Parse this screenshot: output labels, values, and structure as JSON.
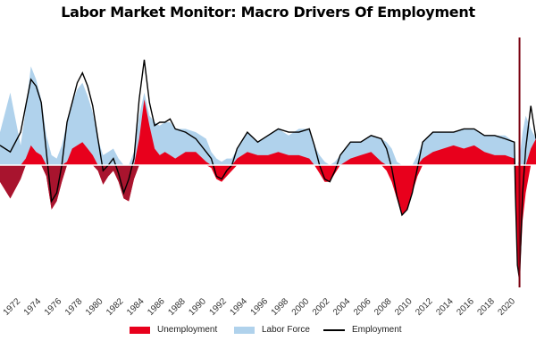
{
  "chart_data": {
    "type": "area",
    "title": "Labor Market Monitor: Macro Drivers Of Employment",
    "xlabel": "",
    "ylabel": "",
    "xlim": [
      1970,
      2022
    ],
    "ylim": [
      -4.4,
      4.2
    ],
    "tick_labels": [
      "1972",
      "1974",
      "1976",
      "1978",
      "1980",
      "1982",
      "1984",
      "1986",
      "1988",
      "1990",
      "1992",
      "1994",
      "1996",
      "1998",
      "2000",
      "2002",
      "2004",
      "2006",
      "2008",
      "2010",
      "2012",
      "2014",
      "2016",
      "2018",
      "2020"
    ],
    "ticks": [
      1972,
      1974,
      1976,
      1978,
      1980,
      1982,
      1984,
      1986,
      1988,
      1990,
      1992,
      1994,
      1996,
      1998,
      2000,
      2002,
      2004,
      2006,
      2008,
      2010,
      2012,
      2014,
      2016,
      2018,
      2020
    ],
    "x": [
      1970,
      1971,
      1972,
      1972.5,
      1973,
      1973.5,
      1974,
      1974.5,
      1975,
      1975.5,
      1976,
      1976.5,
      1977,
      1977.5,
      1978,
      1978.5,
      1979,
      1979.5,
      1980,
      1980.5,
      1981,
      1981.5,
      1982,
      1982.5,
      1983,
      1983.5,
      1984,
      1984.5,
      1985,
      1985.5,
      1986,
      1986.5,
      1987,
      1988,
      1989,
      1990,
      1990.5,
      1991,
      1991.5,
      1992,
      1992.5,
      1993,
      1994,
      1995,
      1996,
      1997,
      1998,
      1999,
      2000,
      2000.5,
      2001,
      2001.5,
      2002,
      2002.5,
      2003,
      2004,
      2005,
      2006,
      2007,
      2007.5,
      2008,
      2008.5,
      2009,
      2009.5,
      2010,
      2010.5,
      2011,
      2012,
      2013,
      2014,
      2015,
      2016,
      2017,
      2018,
      2019,
      2019.9,
      2020,
      2020.2,
      2020.4,
      2020.7,
      2021,
      2021.5,
      2022
    ],
    "series": [
      {
        "name": "Unemployment",
        "color": "#e8001c",
        "values": [
          -0.6,
          -1.2,
          -0.5,
          0.2,
          0.6,
          0.4,
          0.3,
          -0.4,
          -1.6,
          -1.3,
          -0.6,
          0.1,
          0.5,
          0.6,
          0.7,
          0.5,
          0.3,
          -0.2,
          -0.7,
          -0.4,
          -0.2,
          -0.6,
          -1.2,
          -1.3,
          -0.5,
          0.8,
          2.0,
          1.2,
          0.5,
          0.3,
          0.4,
          0.3,
          0.2,
          0.4,
          0.4,
          0.1,
          -0.1,
          -0.5,
          -0.6,
          -0.4,
          -0.2,
          0.2,
          0.4,
          0.3,
          0.3,
          0.4,
          0.3,
          0.3,
          0.2,
          0.0,
          -0.3,
          -0.6,
          -0.6,
          -0.3,
          0.0,
          0.2,
          0.3,
          0.4,
          0.1,
          -0.2,
          -0.6,
          -1.2,
          -1.8,
          -1.6,
          -1.0,
          -0.4,
          0.2,
          0.4,
          0.5,
          0.6,
          0.5,
          0.6,
          0.4,
          0.3,
          0.3,
          0.2,
          -1.0,
          -3.5,
          -4.2,
          -2.0,
          -1.0,
          0.5,
          0.8
        ]
      },
      {
        "name": "Labor Force",
        "color": "#b0d2ec",
        "values": [
          1.0,
          2.2,
          0.6,
          1.5,
          2.4,
          2.2,
          1.7,
          0.9,
          0.3,
          0.2,
          0.6,
          1.2,
          1.4,
          1.7,
          1.8,
          1.6,
          1.3,
          0.8,
          0.3,
          0.4,
          0.5,
          0.2,
          0.0,
          0.0,
          0.4,
          0.7,
          0.2,
          0.3,
          0.8,
          0.9,
          0.9,
          1.0,
          0.9,
          0.7,
          0.6,
          0.7,
          0.4,
          0.2,
          0.1,
          0.2,
          0.2,
          0.3,
          0.6,
          0.4,
          0.6,
          0.7,
          0.6,
          0.8,
          0.9,
          0.6,
          0.3,
          0.1,
          0.0,
          0.1,
          0.3,
          0.5,
          0.4,
          0.5,
          0.7,
          0.7,
          0.5,
          0.1,
          0.0,
          0.0,
          0.0,
          0.3,
          0.5,
          0.6,
          0.5,
          0.4,
          0.6,
          0.5,
          0.5,
          0.6,
          0.6,
          0.5,
          0.0,
          0.0,
          0.2,
          1.0,
          1.5,
          0.6,
          0.0
        ]
      },
      {
        "name": "Employment",
        "color": "#000000",
        "values": [
          0.6,
          0.4,
          1.0,
          1.8,
          2.6,
          2.4,
          1.9,
          0.4,
          -1.3,
          -1.0,
          0.0,
          1.3,
          1.9,
          2.5,
          2.8,
          2.4,
          1.8,
          0.8,
          -0.2,
          0.0,
          0.2,
          -0.3,
          -1.0,
          -0.5,
          0.2,
          2.0,
          3.2,
          1.9,
          1.2,
          1.3,
          1.3,
          1.4,
          1.1,
          1.0,
          0.8,
          0.4,
          0.2,
          -0.4,
          -0.5,
          -0.2,
          0.0,
          0.5,
          1.0,
          0.7,
          0.9,
          1.1,
          1.0,
          1.0,
          1.1,
          0.6,
          0.0,
          -0.5,
          -0.6,
          -0.2,
          0.3,
          0.7,
          0.7,
          0.9,
          0.8,
          0.5,
          -0.1,
          -1.1,
          -1.8,
          -1.6,
          -1.0,
          -0.1,
          0.7,
          1.0,
          1.0,
          1.0,
          1.1,
          1.1,
          0.9,
          0.9,
          0.8,
          0.7,
          -1.0,
          -3.6,
          -4.1,
          -1.0,
          0.5,
          1.8,
          0.8
        ]
      }
    ],
    "legend": [
      "Unemployment",
      "Labor Force",
      "Employment"
    ],
    "legend_position": "bottom",
    "grid": false
  }
}
